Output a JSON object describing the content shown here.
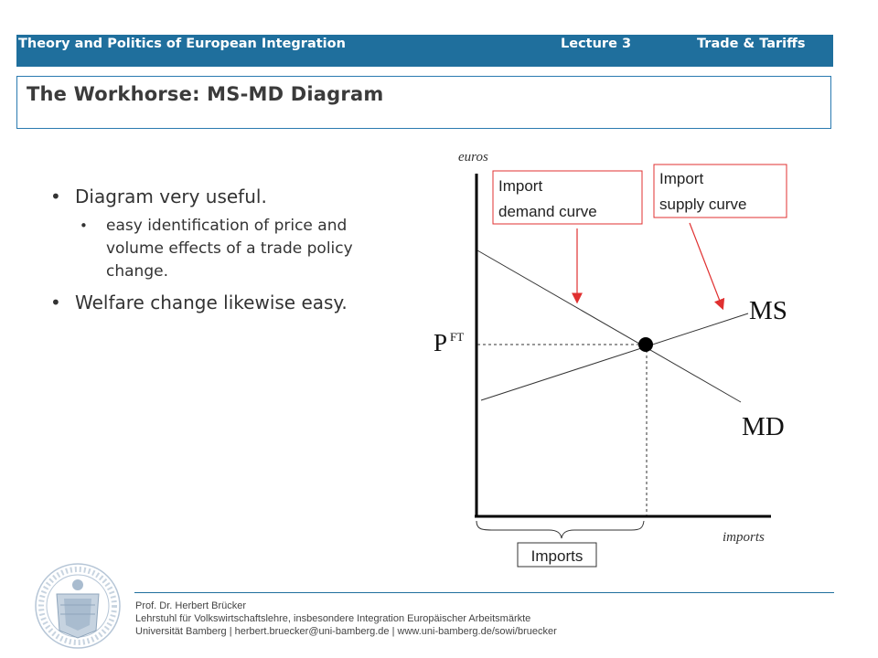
{
  "header": {
    "course": "Theory and Politics of European Integration",
    "lecture": "Lecture 3",
    "topic": "Trade & Tariffs"
  },
  "title": "The Workhorse: MS-MD Diagram",
  "bullets": [
    {
      "text": "Diagram very useful.",
      "sub": [
        "easy identification of price and volume effects of a trade policy change."
      ]
    },
    {
      "text": "Welfare change likewise easy.",
      "sub": []
    }
  ],
  "diagram": {
    "y_axis_label": "euros",
    "x_axis_label": "imports",
    "price_label": "P",
    "price_superscript": "FT",
    "ms_label": "MS",
    "md_label": "MD",
    "callout_demand": [
      "Import",
      "demand curve"
    ],
    "callout_supply": [
      "Import",
      "supply curve"
    ],
    "imports_box": "Imports",
    "callout_color": "#e03030"
  },
  "footer": {
    "name": "Prof. Dr. Herbert Brücker",
    "chair": "Lehrstuhl für Volkswirtschaftslehre, insbesondere Integration Europäischer Arbeitsmärkte",
    "contact": "Universität Bamberg | herbert.bruecker@uni-bamberg.de | www.uni-bamberg.de/sowi/bruecker"
  }
}
